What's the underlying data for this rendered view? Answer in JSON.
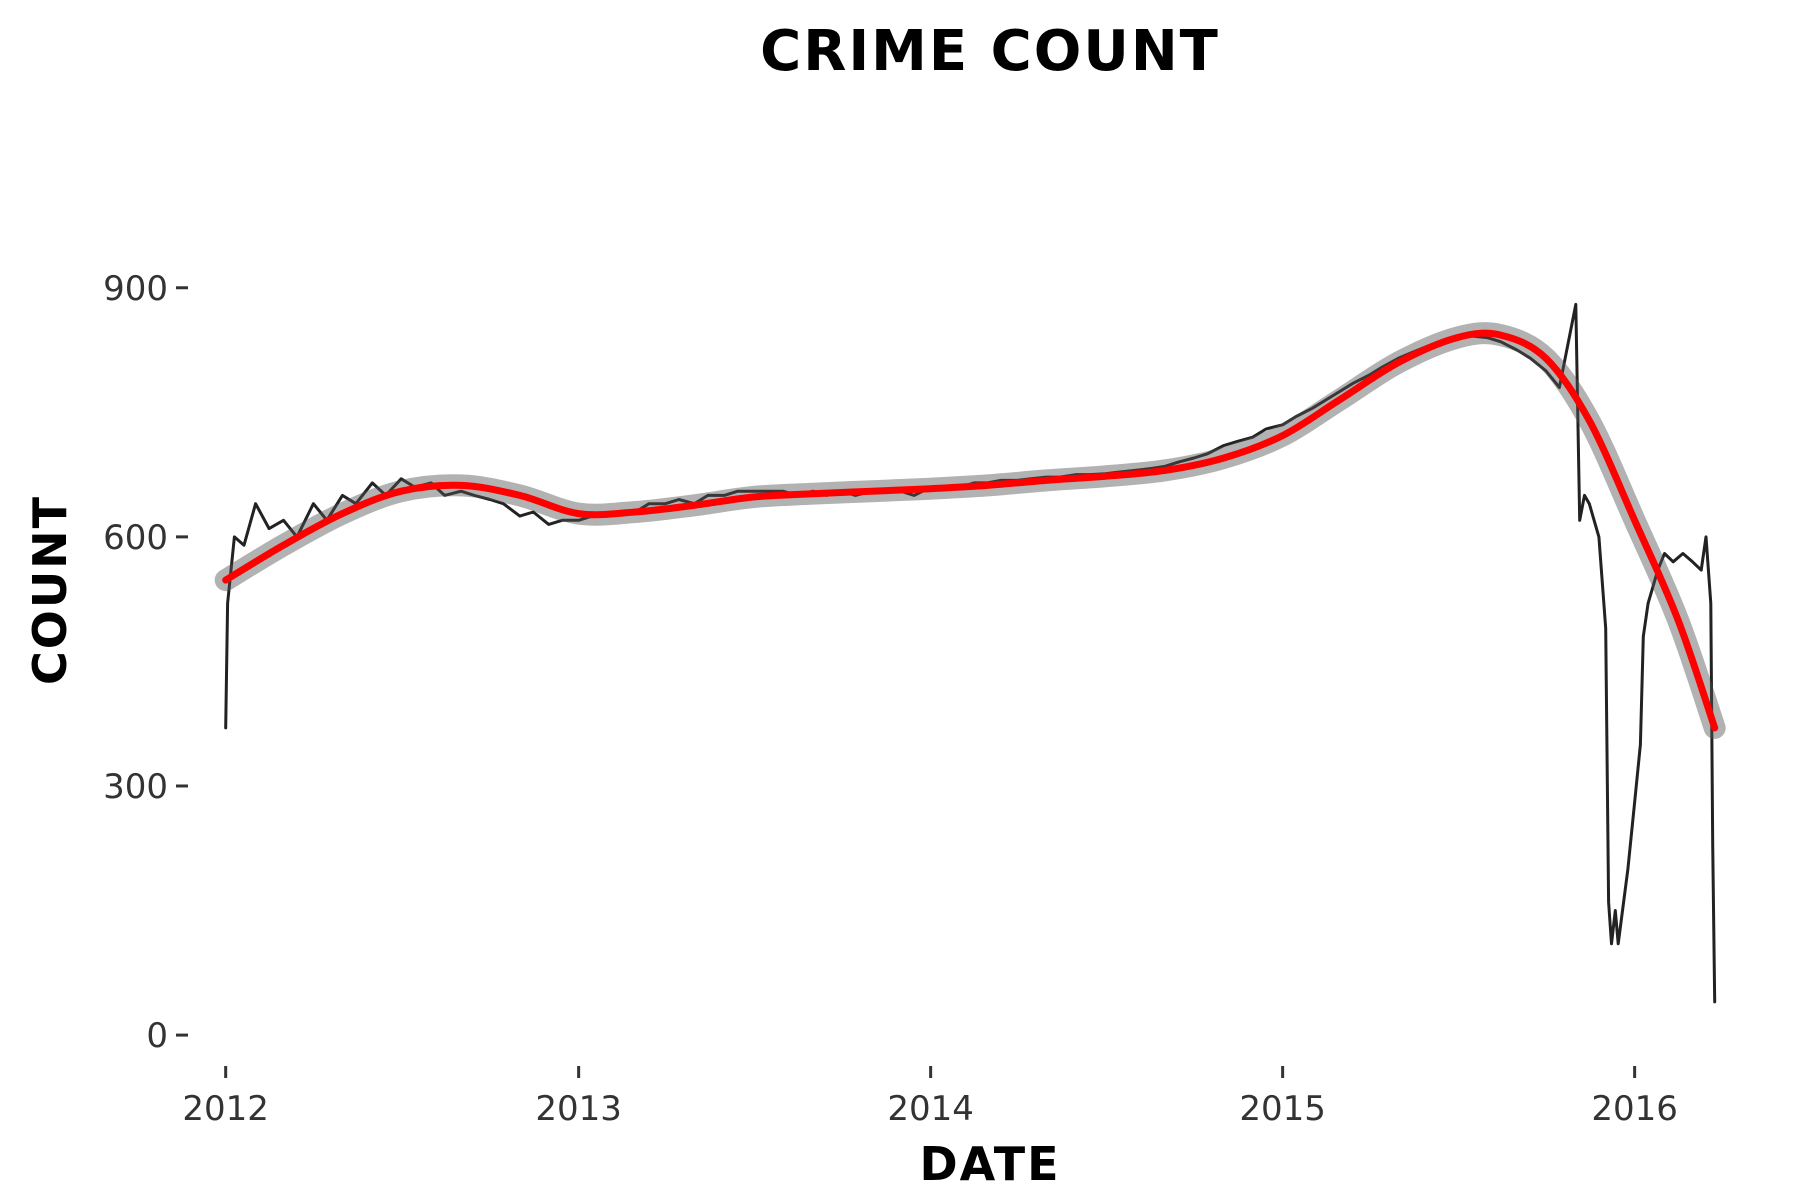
{
  "chart_data": {
    "type": "line",
    "title": "CRIME COUNT",
    "xlabel": "DATE",
    "ylabel": "COUNT",
    "x_ticks": [
      "2012",
      "2013",
      "2014",
      "2015",
      "2016"
    ],
    "y_ticks": [
      0,
      300,
      600,
      900
    ],
    "xlim": [
      "2011-11-25",
      "2016-05-10"
    ],
    "ylim": [
      -30,
      1090
    ],
    "grid": false,
    "legend": "none",
    "series": [
      {
        "style": "line",
        "color": "#222222",
        "points": [
          [
            "2012-01-01",
            370
          ],
          [
            "2012-01-03",
            520
          ],
          [
            "2012-01-10",
            600
          ],
          [
            "2012-01-20",
            590
          ],
          [
            "2012-02-01",
            640
          ],
          [
            "2012-02-15",
            610
          ],
          [
            "2012-03-01",
            620
          ],
          [
            "2012-03-15",
            600
          ],
          [
            "2012-04-01",
            640
          ],
          [
            "2012-04-15",
            620
          ],
          [
            "2012-05-01",
            650
          ],
          [
            "2012-05-15",
            640
          ],
          [
            "2012-06-01",
            665
          ],
          [
            "2012-06-15",
            650
          ],
          [
            "2012-07-01",
            670
          ],
          [
            "2012-07-15",
            660
          ],
          [
            "2012-08-01",
            665
          ],
          [
            "2012-08-15",
            650
          ],
          [
            "2012-09-01",
            655
          ],
          [
            "2012-09-15",
            650
          ],
          [
            "2012-10-01",
            645
          ],
          [
            "2012-10-15",
            640
          ],
          [
            "2012-11-01",
            625
          ],
          [
            "2012-11-15",
            630
          ],
          [
            "2012-12-01",
            615
          ],
          [
            "2012-12-15",
            620
          ],
          [
            "2013-01-01",
            620
          ],
          [
            "2013-01-15",
            625
          ],
          [
            "2013-02-01",
            625
          ],
          [
            "2013-02-15",
            630
          ],
          [
            "2013-03-01",
            630
          ],
          [
            "2013-03-15",
            640
          ],
          [
            "2013-04-01",
            640
          ],
          [
            "2013-04-15",
            645
          ],
          [
            "2013-05-01",
            640
          ],
          [
            "2013-05-15",
            650
          ],
          [
            "2013-06-01",
            650
          ],
          [
            "2013-06-15",
            655
          ],
          [
            "2013-07-01",
            655
          ],
          [
            "2013-07-15",
            655
          ],
          [
            "2013-08-01",
            655
          ],
          [
            "2013-08-15",
            650
          ],
          [
            "2013-09-01",
            655
          ],
          [
            "2013-09-15",
            650
          ],
          [
            "2013-10-01",
            655
          ],
          [
            "2013-10-15",
            650
          ],
          [
            "2013-11-01",
            655
          ],
          [
            "2013-11-15",
            655
          ],
          [
            "2013-12-01",
            655
          ],
          [
            "2013-12-15",
            650
          ],
          [
            "2014-01-01",
            660
          ],
          [
            "2014-01-15",
            660
          ],
          [
            "2014-02-01",
            660
          ],
          [
            "2014-02-15",
            665
          ],
          [
            "2014-03-01",
            665
          ],
          [
            "2014-03-15",
            668
          ],
          [
            "2014-04-01",
            668
          ],
          [
            "2014-04-15",
            670
          ],
          [
            "2014-05-01",
            672
          ],
          [
            "2014-05-15",
            672
          ],
          [
            "2014-06-01",
            675
          ],
          [
            "2014-06-15",
            675
          ],
          [
            "2014-07-01",
            676
          ],
          [
            "2014-07-15",
            678
          ],
          [
            "2014-08-01",
            680
          ],
          [
            "2014-08-15",
            682
          ],
          [
            "2014-09-01",
            685
          ],
          [
            "2014-09-15",
            690
          ],
          [
            "2014-10-01",
            695
          ],
          [
            "2014-10-15",
            700
          ],
          [
            "2014-11-01",
            710
          ],
          [
            "2014-11-15",
            715
          ],
          [
            "2014-12-01",
            720
          ],
          [
            "2014-12-15",
            730
          ],
          [
            "2015-01-01",
            735
          ],
          [
            "2015-01-15",
            745
          ],
          [
            "2015-02-01",
            755
          ],
          [
            "2015-02-15",
            765
          ],
          [
            "2015-03-01",
            775
          ],
          [
            "2015-03-15",
            785
          ],
          [
            "2015-04-01",
            795
          ],
          [
            "2015-04-15",
            805
          ],
          [
            "2015-05-01",
            815
          ],
          [
            "2015-05-15",
            822
          ],
          [
            "2015-06-01",
            830
          ],
          [
            "2015-06-15",
            835
          ],
          [
            "2015-07-01",
            840
          ],
          [
            "2015-07-15",
            842
          ],
          [
            "2015-08-01",
            840
          ],
          [
            "2015-08-15",
            835
          ],
          [
            "2015-09-01",
            825
          ],
          [
            "2015-09-15",
            815
          ],
          [
            "2015-10-01",
            800
          ],
          [
            "2015-10-15",
            780
          ],
          [
            "2015-11-01",
            880
          ],
          [
            "2015-11-05",
            620
          ],
          [
            "2015-11-10",
            650
          ],
          [
            "2015-11-15",
            640
          ],
          [
            "2015-11-25",
            600
          ],
          [
            "2015-12-02",
            490
          ],
          [
            "2015-12-05",
            160
          ],
          [
            "2015-12-08",
            110
          ],
          [
            "2015-12-12",
            150
          ],
          [
            "2015-12-15",
            110
          ],
          [
            "2015-12-25",
            200
          ],
          [
            "2016-01-01",
            280
          ],
          [
            "2016-01-07",
            350
          ],
          [
            "2016-01-10",
            480
          ],
          [
            "2016-01-15",
            520
          ],
          [
            "2016-01-25",
            560
          ],
          [
            "2016-02-01",
            580
          ],
          [
            "2016-02-10",
            570
          ],
          [
            "2016-02-20",
            580
          ],
          [
            "2016-03-01",
            570
          ],
          [
            "2016-03-10",
            560
          ],
          [
            "2016-03-15",
            600
          ],
          [
            "2016-03-20",
            520
          ],
          [
            "2016-03-22",
            230
          ],
          [
            "2016-03-24",
            40
          ]
        ]
      },
      {
        "style": "smooth",
        "color": "#ff0000",
        "points": [
          [
            "2012-01-01",
            548
          ],
          [
            "2012-03-01",
            590
          ],
          [
            "2012-05-01",
            628
          ],
          [
            "2012-07-01",
            655
          ],
          [
            "2012-09-01",
            662
          ],
          [
            "2012-11-01",
            650
          ],
          [
            "2013-01-01",
            628
          ],
          [
            "2013-03-01",
            630
          ],
          [
            "2013-05-01",
            638
          ],
          [
            "2013-07-01",
            648
          ],
          [
            "2013-09-01",
            652
          ],
          [
            "2013-11-01",
            655
          ],
          [
            "2014-01-01",
            658
          ],
          [
            "2014-03-01",
            662
          ],
          [
            "2014-05-01",
            668
          ],
          [
            "2014-07-01",
            673
          ],
          [
            "2014-09-01",
            680
          ],
          [
            "2014-11-01",
            695
          ],
          [
            "2015-01-01",
            722
          ],
          [
            "2015-03-01",
            765
          ],
          [
            "2015-05-01",
            810
          ],
          [
            "2015-07-01",
            840
          ],
          [
            "2015-08-15",
            843
          ],
          [
            "2015-10-01",
            815
          ],
          [
            "2015-11-15",
            740
          ],
          [
            "2016-01-01",
            620
          ],
          [
            "2016-02-15",
            500
          ],
          [
            "2016-03-24",
            370
          ]
        ]
      }
    ]
  }
}
